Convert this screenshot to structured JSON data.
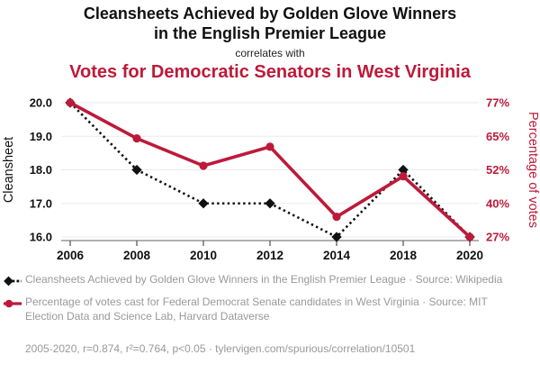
{
  "header": {
    "title": "Cleansheets Achieved by Golden Glove Winners\nin the English Premier League",
    "connector": "correlates with",
    "subtitle": "Votes for Democratic Senators in West Virginia",
    "title_color": "#111111",
    "subtitle_color": "#bd1a3a"
  },
  "chart_data": {
    "type": "line",
    "categories": [
      "2006",
      "2008",
      "2010",
      "2012",
      "2014",
      "2018",
      "2020"
    ],
    "series": [
      {
        "name": "Cleansheets Achieved by Golden Glove Winners in the English Premier League",
        "axis": "left",
        "color": "#111111",
        "line_style": "dotted",
        "marker": "diamond",
        "values": [
          20,
          18,
          17,
          17,
          16,
          18,
          16
        ]
      },
      {
        "name": "Percentage of votes cast for Federal Democrat Senate candidates in West Virginia",
        "axis": "right",
        "color": "#bd1a3a",
        "line_style": "solid",
        "marker": "circle",
        "values": [
          77,
          63.7,
          53.5,
          60.6,
          34.5,
          49.6,
          27
        ]
      }
    ],
    "left_axis": {
      "label": "Cleansheet",
      "ticks": [
        "20.0",
        "19.0",
        "18.0",
        "17.0",
        "16.0"
      ],
      "min": 16,
      "max": 20,
      "color": "#111111"
    },
    "right_axis": {
      "label": "Percentage of votes",
      "ticks": [
        "77%",
        "65%",
        "52%",
        "40%",
        "27%"
      ],
      "min": 27,
      "max": 77,
      "color": "#bd1a3a"
    },
    "grid": true,
    "gridline_color": "#ebebeb",
    "legend_position": "bottom"
  },
  "legend": {
    "items": [
      {
        "label": "Cleansheets Achieved by Golden Glove Winners in the English Premier League · Source: Wikipedia"
      },
      {
        "label": "Percentage of votes cast for Federal Democrat Senate candidates in West Virginia · Source: MIT Election Data and Science Lab, Harvard Dataverse"
      }
    ]
  },
  "footer": {
    "text": "2005-2020, r=0.874, r²=0.764, p<0.05 · tylervigen.com/spurious/correlation/10501"
  }
}
